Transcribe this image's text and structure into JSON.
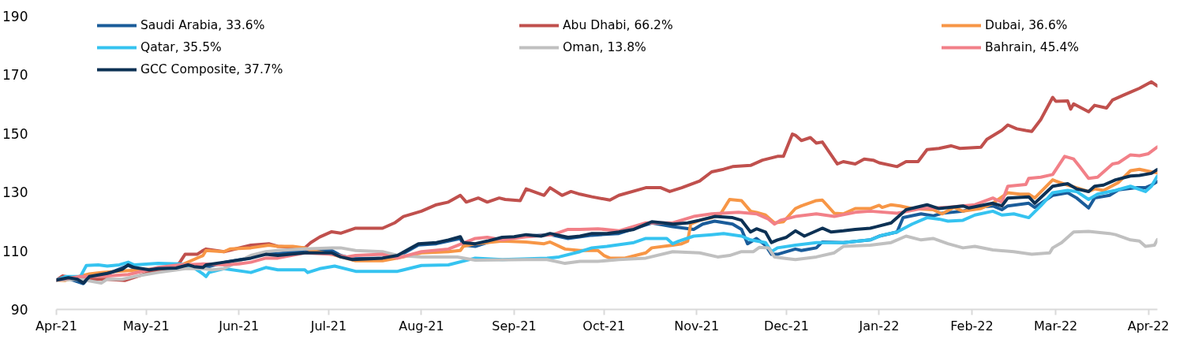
{
  "chart_data": {
    "type": "line",
    "xlim": [
      "2021-04-01",
      "2022-04-04"
    ],
    "ylim": [
      90,
      190
    ],
    "xticks": [
      {
        "value": "2021-04-01",
        "label": "Apr-21"
      },
      {
        "value": "2021-05-01",
        "label": "May-21"
      },
      {
        "value": "2021-06-01",
        "label": "Jun-21"
      },
      {
        "value": "2021-07-01",
        "label": "Jul-21"
      },
      {
        "value": "2021-08-01",
        "label": "Aug-21"
      },
      {
        "value": "2021-09-01",
        "label": "Sep-21"
      },
      {
        "value": "2021-10-01",
        "label": "Oct-21"
      },
      {
        "value": "2021-11-01",
        "label": "Nov-21"
      },
      {
        "value": "2021-12-01",
        "label": "Dec-21"
      },
      {
        "value": "2022-01-01",
        "label": "Jan-22"
      },
      {
        "value": "2022-02-01",
        "label": "Feb-22"
      },
      {
        "value": "2022-03-01",
        "label": "Mar-22"
      },
      {
        "value": "2022-04-01",
        "label": "Apr-22"
      }
    ],
    "yticks": [
      90,
      110,
      130,
      150,
      170,
      190
    ],
    "legend": "top",
    "series": [
      {
        "name": "Saudi Arabia, 33.6%",
        "color": "#1a5c9a",
        "x": [
          "2021-04-01",
          "2021-04-05",
          "2021-04-10",
          "2021-04-12",
          "2021-04-18",
          "2021-04-25",
          "2021-04-27",
          "2021-05-02",
          "2021-05-11",
          "2021-05-15",
          "2021-05-20",
          "2021-05-27",
          "2021-06-05",
          "2021-06-10",
          "2021-06-14",
          "2021-06-23",
          "2021-07-02",
          "2021-07-05",
          "2021-07-09",
          "2021-07-19",
          "2021-07-24",
          "2021-07-31",
          "2021-08-06",
          "2021-08-10",
          "2021-08-14",
          "2021-08-15",
          "2021-08-19",
          "2021-08-23",
          "2021-08-28",
          "2021-09-05",
          "2021-09-13",
          "2021-09-19",
          "2021-09-27",
          "2021-10-06",
          "2021-10-17",
          "2021-10-24",
          "2021-10-31",
          "2021-11-03",
          "2021-11-07",
          "2021-11-13",
          "2021-11-16",
          "2021-11-18",
          "2021-11-21",
          "2021-11-24",
          "2021-11-26",
          "2021-11-28",
          "2021-12-04",
          "2021-12-06",
          "2021-12-11",
          "2021-12-13",
          "2021-12-20",
          "2021-12-29",
          "2022-01-01",
          "2022-01-07",
          "2022-01-09",
          "2022-01-15",
          "2022-01-19",
          "2022-01-22",
          "2022-01-29",
          "2022-02-02",
          "2022-02-08",
          "2022-02-11",
          "2022-02-13",
          "2022-02-20",
          "2022-02-22",
          "2022-02-28",
          "2022-03-05",
          "2022-03-08",
          "2022-03-12",
          "2022-03-14",
          "2022-03-19",
          "2022-03-22",
          "2022-03-28",
          "2022-03-31",
          "2022-04-02",
          "2022-04-04"
        ],
        "values": [
          100,
          100.5,
          98.8,
          101,
          102.1,
          105,
          104.1,
          103.4,
          104,
          105,
          104.1,
          106,
          107.6,
          109.3,
          109,
          110.1,
          110.1,
          108.4,
          107.3,
          107.5,
          108,
          112,
          112.4,
          113.3,
          114.2,
          112,
          111.5,
          112.8,
          114.2,
          115,
          115.5,
          114.2,
          115.3,
          115.9,
          119.5,
          118.2,
          117.3,
          119.1,
          120.1,
          119.1,
          117.3,
          112.4,
          114.2,
          111.9,
          108.8,
          108.8,
          110.6,
          110.1,
          111,
          113,
          112.8,
          113.7,
          115,
          116.4,
          121.3,
          122.6,
          121.9,
          122.8,
          123.5,
          124.8,
          125.3,
          124,
          125.3,
          126.2,
          124.8,
          128.9,
          129.8,
          128,
          124.6,
          128,
          128.9,
          130.8,
          131.5,
          131.5,
          132.4,
          133.6
        ]
      },
      {
        "name": "Abu Dhabi, 66.2%",
        "color": "#c0504d",
        "x": [
          "2021-04-01",
          "2021-04-03",
          "2021-04-09",
          "2021-04-18",
          "2021-04-24",
          "2021-05-02",
          "2021-05-09",
          "2021-05-12",
          "2021-05-14",
          "2021-05-18",
          "2021-05-20",
          "2021-05-21",
          "2021-05-27",
          "2021-06-05",
          "2021-06-11",
          "2021-06-14",
          "2021-06-23",
          "2021-06-25",
          "2021-06-28",
          "2021-07-02",
          "2021-07-05",
          "2021-07-10",
          "2021-07-19",
          "2021-07-23",
          "2021-07-26",
          "2021-08-01",
          "2021-08-06",
          "2021-08-10",
          "2021-08-14",
          "2021-08-16",
          "2021-08-20",
          "2021-08-23",
          "2021-08-27",
          "2021-08-29",
          "2021-09-03",
          "2021-09-05",
          "2021-09-11",
          "2021-09-13",
          "2021-09-17",
          "2021-09-20",
          "2021-09-23",
          "2021-09-27",
          "2021-10-03",
          "2021-10-06",
          "2021-10-15",
          "2021-10-20",
          "2021-10-23",
          "2021-10-27",
          "2021-11-02",
          "2021-11-06",
          "2021-11-10",
          "2021-11-13",
          "2021-11-19",
          "2021-11-23",
          "2021-11-28",
          "2021-11-30",
          "2021-12-03",
          "2021-12-04",
          "2021-12-06",
          "2021-12-09",
          "2021-12-11",
          "2021-12-13",
          "2021-12-18",
          "2021-12-20",
          "2021-12-24",
          "2021-12-27",
          "2021-12-30",
          "2022-01-01",
          "2022-01-07",
          "2022-01-10",
          "2022-01-14",
          "2022-01-17",
          "2022-01-21",
          "2022-01-25",
          "2022-01-28",
          "2022-02-04",
          "2022-02-06",
          "2022-02-11",
          "2022-02-13",
          "2022-02-16",
          "2022-02-19",
          "2022-02-21",
          "2022-02-24",
          "2022-02-28",
          "2022-03-01",
          "2022-03-05",
          "2022-03-06",
          "2022-03-07",
          "2022-03-12",
          "2022-03-14",
          "2022-03-18",
          "2022-03-20",
          "2022-03-24",
          "2022-03-26",
          "2022-03-29",
          "2022-04-02",
          "2022-04-04"
        ],
        "values": [
          100,
          101.4,
          100.3,
          100.3,
          99.9,
          102.6,
          104.1,
          105.7,
          108.8,
          108.8,
          110.1,
          110.6,
          109.7,
          111.9,
          112.4,
          111.5,
          111,
          112.8,
          114.7,
          116.5,
          116,
          117.7,
          117.7,
          119.5,
          121.7,
          123.5,
          125.7,
          126.6,
          128.9,
          126.6,
          128,
          126.6,
          128,
          127.5,
          127.1,
          131.1,
          128.9,
          131.5,
          128.9,
          130.2,
          129.3,
          128.4,
          127.3,
          128.9,
          131.5,
          131.5,
          130.2,
          131.5,
          133.8,
          136.9,
          137.8,
          138.7,
          139.1,
          140.9,
          142.2,
          142.2,
          149.8,
          149.4,
          147.6,
          148.6,
          146.7,
          147.1,
          139.6,
          140.4,
          139.6,
          141.3,
          140.9,
          140,
          138.7,
          140.4,
          140.4,
          144.5,
          144.9,
          145.8,
          144.9,
          145.3,
          148,
          151.1,
          152.9,
          151.6,
          151,
          150.7,
          154.7,
          162.3,
          161,
          161.1,
          158.3,
          160.1,
          157.4,
          159.6,
          158.7,
          161.4,
          163.2,
          164.1,
          165.4,
          167.6,
          166.2
        ]
      },
      {
        "name": "Dubai, 36.6%",
        "color": "#f79646",
        "x": [
          "2021-04-01",
          "2021-04-04",
          "2021-04-09",
          "2021-04-12",
          "2021-04-16",
          "2021-04-21",
          "2021-05-05",
          "2021-05-12",
          "2021-05-16",
          "2021-05-20",
          "2021-05-21",
          "2021-05-27",
          "2021-05-29",
          "2021-06-05",
          "2021-06-11",
          "2021-06-14",
          "2021-06-19",
          "2021-06-23",
          "2021-06-25",
          "2021-07-02",
          "2021-07-10",
          "2021-07-19",
          "2021-07-24",
          "2021-08-01",
          "2021-08-10",
          "2021-08-14",
          "2021-08-15",
          "2021-08-19",
          "2021-08-28",
          "2021-09-05",
          "2021-09-11",
          "2021-09-13",
          "2021-09-18",
          "2021-09-23",
          "2021-09-29",
          "2021-10-01",
          "2021-10-03",
          "2021-10-08",
          "2021-10-15",
          "2021-10-17",
          "2021-10-24",
          "2021-10-27",
          "2021-10-29",
          "2021-10-30",
          "2021-11-02",
          "2021-11-06",
          "2021-11-09",
          "2021-11-12",
          "2021-11-16",
          "2021-11-19",
          "2021-11-21",
          "2021-11-24",
          "2021-11-27",
          "2021-11-30",
          "2021-12-04",
          "2021-12-06",
          "2021-12-11",
          "2021-12-13",
          "2021-12-17",
          "2021-12-20",
          "2021-12-24",
          "2021-12-29",
          "2022-01-01",
          "2022-01-02",
          "2022-01-05",
          "2022-01-08",
          "2022-01-12",
          "2022-01-19",
          "2022-01-22",
          "2022-01-26",
          "2022-01-29",
          "2022-02-04",
          "2022-02-08",
          "2022-02-13",
          "2022-02-17",
          "2022-02-20",
          "2022-02-22",
          "2022-02-28",
          "2022-03-01",
          "2022-03-05",
          "2022-03-08",
          "2022-03-12",
          "2022-03-14",
          "2022-03-17",
          "2022-03-22",
          "2022-03-26",
          "2022-03-29",
          "2022-04-02",
          "2022-04-04"
        ],
        "values": [
          100,
          99.9,
          101.4,
          102.1,
          102.6,
          103,
          103.9,
          104.8,
          106.6,
          108.4,
          110.1,
          109.7,
          110.6,
          111,
          111.9,
          111.5,
          111.5,
          111,
          110.1,
          108.8,
          106.6,
          106.6,
          107.5,
          109.3,
          109.7,
          110.1,
          111.5,
          112.4,
          113.3,
          113,
          112.4,
          113,
          110.6,
          110.1,
          110.1,
          108.4,
          107.5,
          107.5,
          109.3,
          111,
          111.9,
          112.4,
          113.3,
          119.1,
          120.4,
          121.3,
          122.6,
          127.5,
          127.1,
          123.5,
          123.1,
          122.2,
          119.5,
          119.9,
          124.4,
          125.3,
          127.1,
          127.3,
          122.8,
          122.6,
          124.4,
          124.4,
          125.5,
          124.8,
          125.7,
          125.3,
          124.4,
          124,
          122.6,
          124.8,
          123.5,
          124.4,
          126.2,
          129.8,
          129.3,
          129.3,
          128,
          134.2,
          133.8,
          132.4,
          131.5,
          130.2,
          131.1,
          130.6,
          133.3,
          137.3,
          137.8,
          136.9,
          136.6
        ]
      },
      {
        "name": "Qatar, 35.5%",
        "color": "#35c3f0",
        "x": [
          "2021-04-01",
          "2021-04-04",
          "2021-04-09",
          "2021-04-11",
          "2021-04-15",
          "2021-04-18",
          "2021-04-22",
          "2021-04-25",
          "2021-04-27",
          "2021-05-05",
          "2021-05-12",
          "2021-05-16",
          "2021-05-20",
          "2021-05-21",
          "2021-05-22",
          "2021-05-27",
          "2021-06-05",
          "2021-06-10",
          "2021-06-14",
          "2021-06-23",
          "2021-06-24",
          "2021-06-28",
          "2021-07-03",
          "2021-07-10",
          "2021-07-19",
          "2021-07-24",
          "2021-08-01",
          "2021-08-10",
          "2021-08-19",
          "2021-08-28",
          "2021-09-12",
          "2021-09-16",
          "2021-09-23",
          "2021-09-27",
          "2021-10-02",
          "2021-10-11",
          "2021-10-15",
          "2021-10-22",
          "2021-10-24",
          "2021-10-26",
          "2021-10-31",
          "2021-11-06",
          "2021-11-10",
          "2021-11-16",
          "2021-11-19",
          "2021-11-24",
          "2021-11-26",
          "2021-11-28",
          "2021-12-04",
          "2021-12-11",
          "2021-12-20",
          "2021-12-29",
          "2022-01-02",
          "2022-01-07",
          "2022-01-12",
          "2022-01-17",
          "2022-01-21",
          "2022-01-24",
          "2022-01-29",
          "2022-02-02",
          "2022-02-08",
          "2022-02-11",
          "2022-02-15",
          "2022-02-20",
          "2022-02-24",
          "2022-02-28",
          "2022-03-05",
          "2022-03-08",
          "2022-03-12",
          "2022-03-15",
          "2022-03-21",
          "2022-03-26",
          "2022-03-31",
          "2022-04-02",
          "2022-04-04"
        ],
        "values": [
          100,
          101.2,
          101.2,
          105,
          105.2,
          104.8,
          105.2,
          106.1,
          105.2,
          105.7,
          105.5,
          104.8,
          102.1,
          101.2,
          102.6,
          103.9,
          102.6,
          104.3,
          103.5,
          103.5,
          102.6,
          103.9,
          104.8,
          103,
          103,
          103,
          105,
          105.2,
          107.5,
          107,
          107.5,
          107.9,
          109.7,
          111,
          111.5,
          112.8,
          114.2,
          114.2,
          112.4,
          113.3,
          115,
          115.5,
          115.9,
          115,
          113.7,
          112.8,
          109.7,
          111,
          111.9,
          112.8,
          112.8,
          113.7,
          115.3,
          116.4,
          119.1,
          121.3,
          120.8,
          120.1,
          120.4,
          122.2,
          123.5,
          122.2,
          122.6,
          121.3,
          125.3,
          129.8,
          130.6,
          130.2,
          127.5,
          129.3,
          130.6,
          132,
          130.2,
          132,
          135.5
        ]
      },
      {
        "name": "Oman, 13.8%",
        "color": "#c0c0c0",
        "x": [
          "2021-04-01",
          "2021-04-09",
          "2021-04-16",
          "2021-04-18",
          "2021-04-23",
          "2021-04-27",
          "2021-05-05",
          "2021-05-14",
          "2021-05-20",
          "2021-05-23",
          "2021-05-27",
          "2021-06-05",
          "2021-06-10",
          "2021-06-14",
          "2021-06-23",
          "2021-07-02",
          "2021-07-05",
          "2021-07-10",
          "2021-07-19",
          "2021-07-24",
          "2021-08-01",
          "2021-08-13",
          "2021-08-19",
          "2021-09-05",
          "2021-09-12",
          "2021-09-18",
          "2021-09-23",
          "2021-09-29",
          "2021-10-06",
          "2021-10-15",
          "2021-10-24",
          "2021-11-02",
          "2021-11-08",
          "2021-11-12",
          "2021-11-16",
          "2021-11-20",
          "2021-11-22",
          "2021-11-25",
          "2021-11-27",
          "2021-11-30",
          "2021-12-04",
          "2021-12-11",
          "2021-12-17",
          "2021-12-20",
          "2021-12-29",
          "2022-01-05",
          "2022-01-10",
          "2022-01-15",
          "2022-01-19",
          "2022-01-24",
          "2022-01-29",
          "2022-02-02",
          "2022-02-08",
          "2022-02-15",
          "2022-02-21",
          "2022-02-27",
          "2022-02-28",
          "2022-03-03",
          "2022-03-07",
          "2022-03-12",
          "2022-03-19",
          "2022-03-21",
          "2022-03-26",
          "2022-03-29",
          "2022-03-31",
          "2022-04-03",
          "2022-04-04"
        ],
        "values": [
          100,
          100.3,
          99,
          100.3,
          100.3,
          101.2,
          102.6,
          103.9,
          103.9,
          103.5,
          103.9,
          108.4,
          109.7,
          110.1,
          110.6,
          111,
          111,
          110.1,
          109.7,
          108.4,
          107.9,
          107.9,
          106.8,
          107,
          107,
          105.7,
          106.4,
          106.4,
          107,
          107.5,
          109.7,
          109.3,
          107.9,
          108.4,
          109.7,
          109.7,
          111.2,
          111,
          107.9,
          107.5,
          107,
          107.9,
          109.3,
          111.5,
          111.9,
          112.8,
          115,
          113.7,
          114.2,
          112.4,
          111,
          111.5,
          110.3,
          109.7,
          108.8,
          109.3,
          111,
          112.8,
          116.4,
          116.6,
          115.9,
          115.5,
          113.7,
          113.3,
          111.5,
          111.9,
          113.8
        ]
      },
      {
        "name": "Bahrain, 45.4%",
        "color": "#f28088",
        "x": [
          "2021-04-01",
          "2021-04-09",
          "2021-04-18",
          "2021-04-25",
          "2021-05-05",
          "2021-05-12",
          "2021-05-20",
          "2021-05-27",
          "2021-06-01",
          "2021-06-05",
          "2021-06-10",
          "2021-06-14",
          "2021-06-23",
          "2021-07-02",
          "2021-07-07",
          "2021-07-10",
          "2021-07-19",
          "2021-07-24",
          "2021-08-01",
          "2021-08-10",
          "2021-08-19",
          "2021-08-23",
          "2021-08-28",
          "2021-09-05",
          "2021-09-14",
          "2021-09-19",
          "2021-09-23",
          "2021-09-29",
          "2021-10-06",
          "2021-10-15",
          "2021-10-24",
          "2021-10-31",
          "2021-11-06",
          "2021-11-15",
          "2021-11-21",
          "2021-11-25",
          "2021-11-27",
          "2021-11-29",
          "2021-12-04",
          "2021-12-11",
          "2021-12-17",
          "2021-12-24",
          "2021-12-29",
          "2022-01-07",
          "2022-01-15",
          "2022-01-24",
          "2022-02-02",
          "2022-02-08",
          "2022-02-09",
          "2022-02-11",
          "2022-02-13",
          "2022-02-19",
          "2022-02-20",
          "2022-02-24",
          "2022-02-28",
          "2022-03-04",
          "2022-03-07",
          "2022-03-09",
          "2022-03-12",
          "2022-03-15",
          "2022-03-20",
          "2022-03-22",
          "2022-03-26",
          "2022-03-29",
          "2022-04-01",
          "2022-04-04"
        ],
        "values": [
          100,
          101.2,
          101.4,
          101.9,
          104.3,
          105.2,
          105.5,
          105.2,
          105.5,
          106.1,
          107.5,
          107.5,
          109.3,
          108.8,
          107.9,
          108.4,
          108.8,
          107.5,
          109.7,
          110.6,
          114.2,
          114.6,
          113.7,
          114.8,
          115.5,
          117.3,
          117.3,
          117.5,
          116.8,
          119.5,
          119.5,
          121.7,
          122.6,
          123.1,
          122.6,
          120.8,
          119.1,
          120.4,
          121.7,
          122.6,
          121.7,
          123.1,
          123.5,
          122.8,
          124.4,
          124.8,
          125.7,
          128,
          127.5,
          126.6,
          132,
          132.6,
          134.7,
          135.1,
          136,
          142.2,
          141.3,
          138.7,
          134.7,
          135.1,
          139.6,
          140,
          142.7,
          142.4,
          143.1,
          145.4
        ]
      },
      {
        "name": "GCC Composite, 37.7%",
        "color": "#0c3154",
        "x": [
          "2021-04-01",
          "2021-04-05",
          "2021-04-08",
          "2021-04-10",
          "2021-04-12",
          "2021-04-18",
          "2021-04-23",
          "2021-04-25",
          "2021-04-27",
          "2021-05-02",
          "2021-05-05",
          "2021-05-11",
          "2021-05-15",
          "2021-05-17",
          "2021-05-20",
          "2021-05-21",
          "2021-05-27",
          "2021-06-05",
          "2021-06-10",
          "2021-06-14",
          "2021-06-23",
          "2021-07-02",
          "2021-07-05",
          "2021-07-09",
          "2021-07-19",
          "2021-07-24",
          "2021-07-31",
          "2021-08-06",
          "2021-08-10",
          "2021-08-14",
          "2021-08-15",
          "2021-08-19",
          "2021-08-23",
          "2021-08-28",
          "2021-09-01",
          "2021-09-05",
          "2021-09-10",
          "2021-09-13",
          "2021-09-19",
          "2021-09-23",
          "2021-09-27",
          "2021-10-02",
          "2021-10-06",
          "2021-10-11",
          "2021-10-17",
          "2021-10-21",
          "2021-10-24",
          "2021-10-29",
          "2021-11-02",
          "2021-11-07",
          "2021-11-13",
          "2021-11-16",
          "2021-11-19",
          "2021-11-21",
          "2021-11-24",
          "2021-11-26",
          "2021-11-28",
          "2021-12-01",
          "2021-12-04",
          "2021-12-07",
          "2021-12-13",
          "2021-12-16",
          "2021-12-20",
          "2021-12-24",
          "2021-12-29",
          "2021-12-31",
          "2022-01-05",
          "2022-01-10",
          "2022-01-17",
          "2022-01-21",
          "2022-01-29",
          "2022-01-31",
          "2022-02-08",
          "2022-02-11",
          "2022-02-13",
          "2022-02-20",
          "2022-02-22",
          "2022-02-28",
          "2022-03-05",
          "2022-03-08",
          "2022-03-12",
          "2022-03-14",
          "2022-03-17",
          "2022-03-21",
          "2022-03-26",
          "2022-03-29",
          "2022-04-02",
          "2022-04-04"
        ],
        "values": [
          100,
          100.8,
          100.3,
          99,
          101.2,
          102.3,
          103.7,
          105.2,
          104.3,
          103.5,
          103.9,
          104.1,
          105.2,
          104.6,
          104.3,
          105.2,
          106.1,
          107.5,
          108.8,
          108.4,
          109.3,
          109.3,
          107.9,
          107,
          107.5,
          108.4,
          112.4,
          112.8,
          113.7,
          114.8,
          112.8,
          112.4,
          113.3,
          114.6,
          114.8,
          115.5,
          115,
          115.9,
          114.6,
          115,
          115.9,
          115.9,
          116.4,
          117.3,
          119.9,
          119.5,
          119.1,
          119.5,
          120.4,
          121.7,
          121.3,
          120.4,
          116.4,
          117.5,
          116.4,
          112.8,
          113.7,
          114.6,
          116.8,
          115,
          117.7,
          116.4,
          116.8,
          117.3,
          117.7,
          118.2,
          119.5,
          124,
          125.7,
          124.4,
          125.3,
          124.6,
          126.2,
          125.3,
          128,
          128.4,
          126.2,
          132,
          132.9,
          131.1,
          130.2,
          132,
          132.4,
          134.2,
          135.5,
          135.7,
          136.4,
          137.7
        ]
      }
    ]
  }
}
